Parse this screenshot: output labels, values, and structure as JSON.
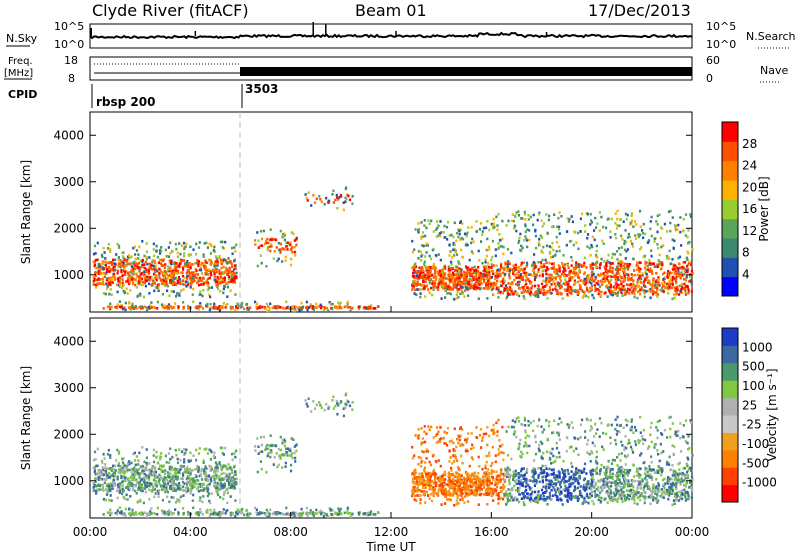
{
  "header": {
    "station": "Clyde River (fitACF)",
    "beam": "Beam 01",
    "date": "17/Dec/2013"
  },
  "top_panel": {
    "left_label": "N.Sky",
    "right_label": "N.Search",
    "tick_high": "10^5",
    "tick_low": "10^0"
  },
  "freq_panel": {
    "left_label_line1": "Freq.",
    "left_label_line2": "[MHz]",
    "right_label": "Nave",
    "tick_high": "18",
    "tick_low": "8",
    "right_tick_high": "60",
    "right_tick_low": "0"
  },
  "cpid": {
    "label": "CPID",
    "segments": [
      {
        "name": "rbsp 200",
        "start_hour": 0
      },
      {
        "name": "3503",
        "start_hour": 6
      }
    ]
  },
  "colors": {
    "power_scale": [
      "#0000ff",
      "#2050b0",
      "#3a8a70",
      "#5aa55a",
      "#9acd32",
      "#ffb000",
      "#ff8000",
      "#ff5000",
      "#ff0000"
    ],
    "velocity_scale": [
      "#ff0000",
      "#ff4000",
      "#ff8000",
      "#f0a020",
      "#c8c8c8",
      "#b0b0b0",
      "#7fc840",
      "#4a9a6a",
      "#3a6aa0",
      "#1e3cc8"
    ]
  },
  "chart_data": [
    {
      "type": "heatmap",
      "name_printed": "",
      "ylabel": "Slant Range [km]",
      "yticks": [
        "1000",
        "2000",
        "3000",
        "4000"
      ],
      "ylim": [
        200,
        4500
      ],
      "xlim": [
        0,
        24
      ],
      "xticks": [
        "00:00",
        "04:00",
        "08:00",
        "12:00",
        "16:00",
        "20:00",
        "00:00"
      ],
      "colorbar_label": "Power [dB]",
      "colorbar_ticks": [
        "28",
        "24",
        "20",
        "16",
        "12",
        "8",
        "4"
      ]
    },
    {
      "type": "heatmap",
      "ylabel": "Slant Range [km]",
      "yticks": [
        "1000",
        "2000",
        "3000",
        "4000"
      ],
      "ylim": [
        200,
        4500
      ],
      "xlim": [
        0,
        24
      ],
      "xticks": [
        "00:00",
        "04:00",
        "08:00",
        "12:00",
        "16:00",
        "20:00",
        "00:00"
      ],
      "xlabel": "Time UT",
      "colorbar_label": "Velocity [m s⁻¹]",
      "colorbar_ticks": [
        "1000",
        "500",
        "100",
        "25",
        "-25",
        "-100",
        "-500",
        "-1000"
      ]
    }
  ]
}
